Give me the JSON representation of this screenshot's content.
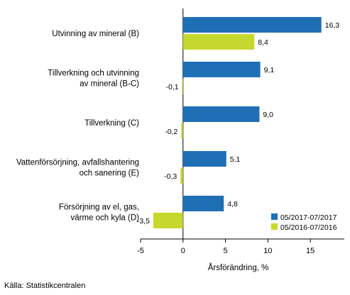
{
  "chart_data": {
    "type": "bar",
    "orientation": "horizontal",
    "categories": [
      [
        "Utvinning av mineral (B)"
      ],
      [
        "Tillverkning och utvinning",
        "av mineral (B-C)"
      ],
      [
        "Tillverkning (C)"
      ],
      [
        "Vattenförsörjning, avfallshantering",
        "och sanering (E)"
      ],
      [
        "Försörjning av el, gas,",
        "värme och kyla (D)"
      ]
    ],
    "series": [
      {
        "name": "05/2017-07/2017",
        "color": "#1f6fb5",
        "values": [
          16.3,
          9.1,
          9.0,
          5.1,
          4.8
        ],
        "labels": [
          "16,3",
          "9,1",
          "9,0",
          "5,1",
          "4,8"
        ]
      },
      {
        "name": "05/2016-07/2016",
        "color": "#c6d82e",
        "values": [
          8.4,
          -0.1,
          -0.2,
          -0.3,
          -3.5
        ],
        "labels": [
          "8,4",
          "-0,1",
          "-0,2",
          "-0,3",
          "-3,5"
        ]
      }
    ],
    "xlabel": "Årsförändring, %",
    "xlim": [
      -5,
      19
    ],
    "xticks": [
      -5,
      0,
      5,
      10,
      15
    ],
    "xtick_labels": [
      "-5",
      "0",
      "5",
      "10",
      "15"
    ],
    "grid": false,
    "legend_position": "bottom-right"
  },
  "source": "Källa: Statistikcentralen"
}
